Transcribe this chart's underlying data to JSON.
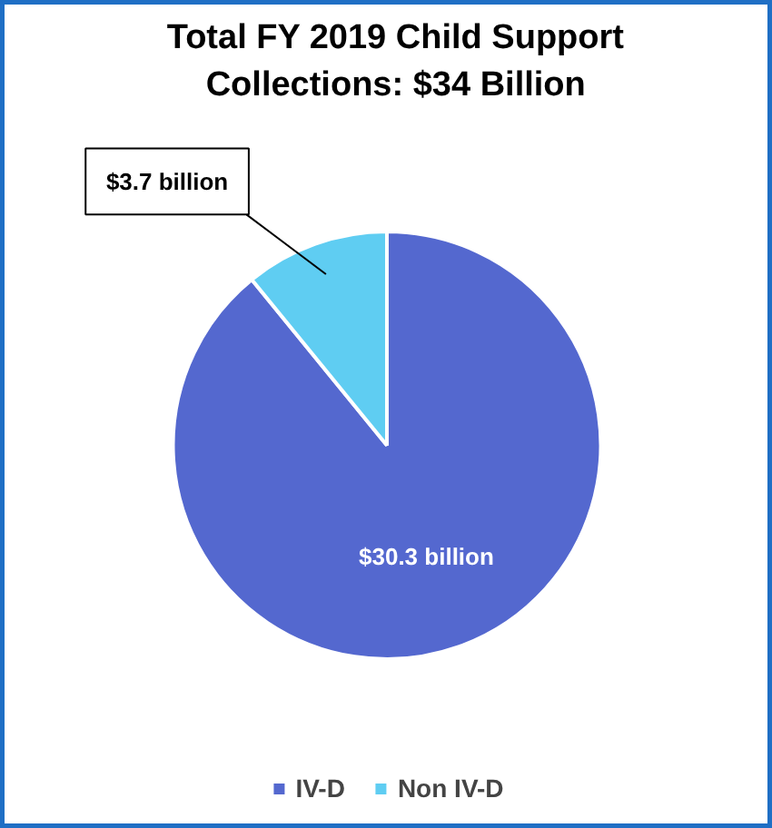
{
  "chart_data": {
    "type": "pie",
    "title": "Total FY 2019 Child Support\nCollections: $34 Billion",
    "categories": [
      "IV-D",
      "Non IV-D"
    ],
    "values": [
      30.3,
      3.7
    ],
    "colors": [
      "#5468cf",
      "#5fcdf2"
    ],
    "value_labels": [
      "$30.3 billion",
      "$3.7 billion"
    ],
    "legend": "bottom"
  }
}
